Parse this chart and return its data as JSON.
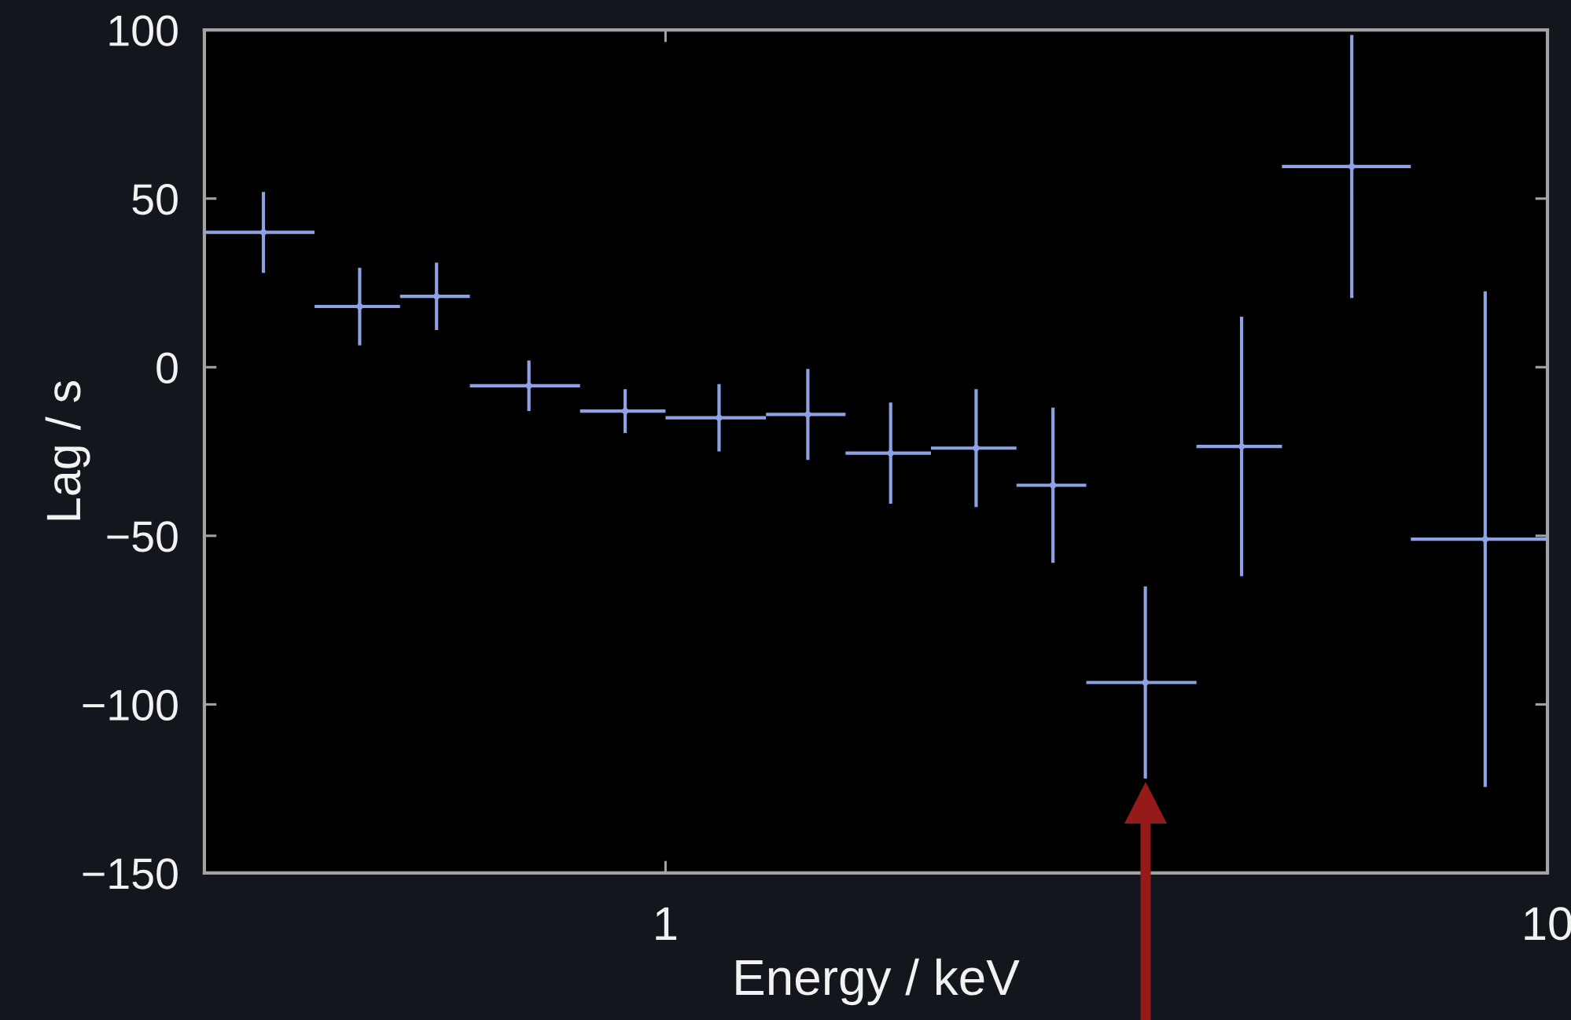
{
  "chart_data": {
    "type": "scatter",
    "xlabel": "Energy / keV",
    "ylabel": "Lag / s",
    "x": [
      0.35,
      0.45,
      0.55,
      0.7,
      0.9,
      1.15,
      1.45,
      1.8,
      2.25,
      2.75,
      3.5,
      4.5,
      6,
      8.5
    ],
    "values": [
      40,
      18,
      21,
      -5.5,
      -13,
      -15,
      -14,
      -25.5,
      -24,
      -35,
      -93.5,
      -23.5,
      59.5,
      -51
    ],
    "errors": [
      12,
      11.5,
      10,
      7.5,
      6.5,
      10,
      13.5,
      15,
      17.5,
      23,
      28.5,
      38.5,
      39,
      73.5
    ],
    "xerrors": [
      0.05,
      0.05,
      0.05,
      0.1,
      0.1,
      0.15,
      0.15,
      0.2,
      0.25,
      0.25,
      0.5,
      0.5,
      1,
      1.5
    ],
    "color": "#8ca2e4",
    "marker": "circle",
    "log": "x",
    "xlim": [
      0.3,
      10
    ],
    "ylim": [
      -150,
      100
    ],
    "xticks": [
      1,
      10
    ],
    "yticks": [
      {
        "value": -150,
        "label": "−150"
      },
      {
        "value": -100,
        "label": "−100"
      },
      {
        "value": -50,
        "label": "−50"
      },
      0,
      50,
      100
    ]
  }
}
